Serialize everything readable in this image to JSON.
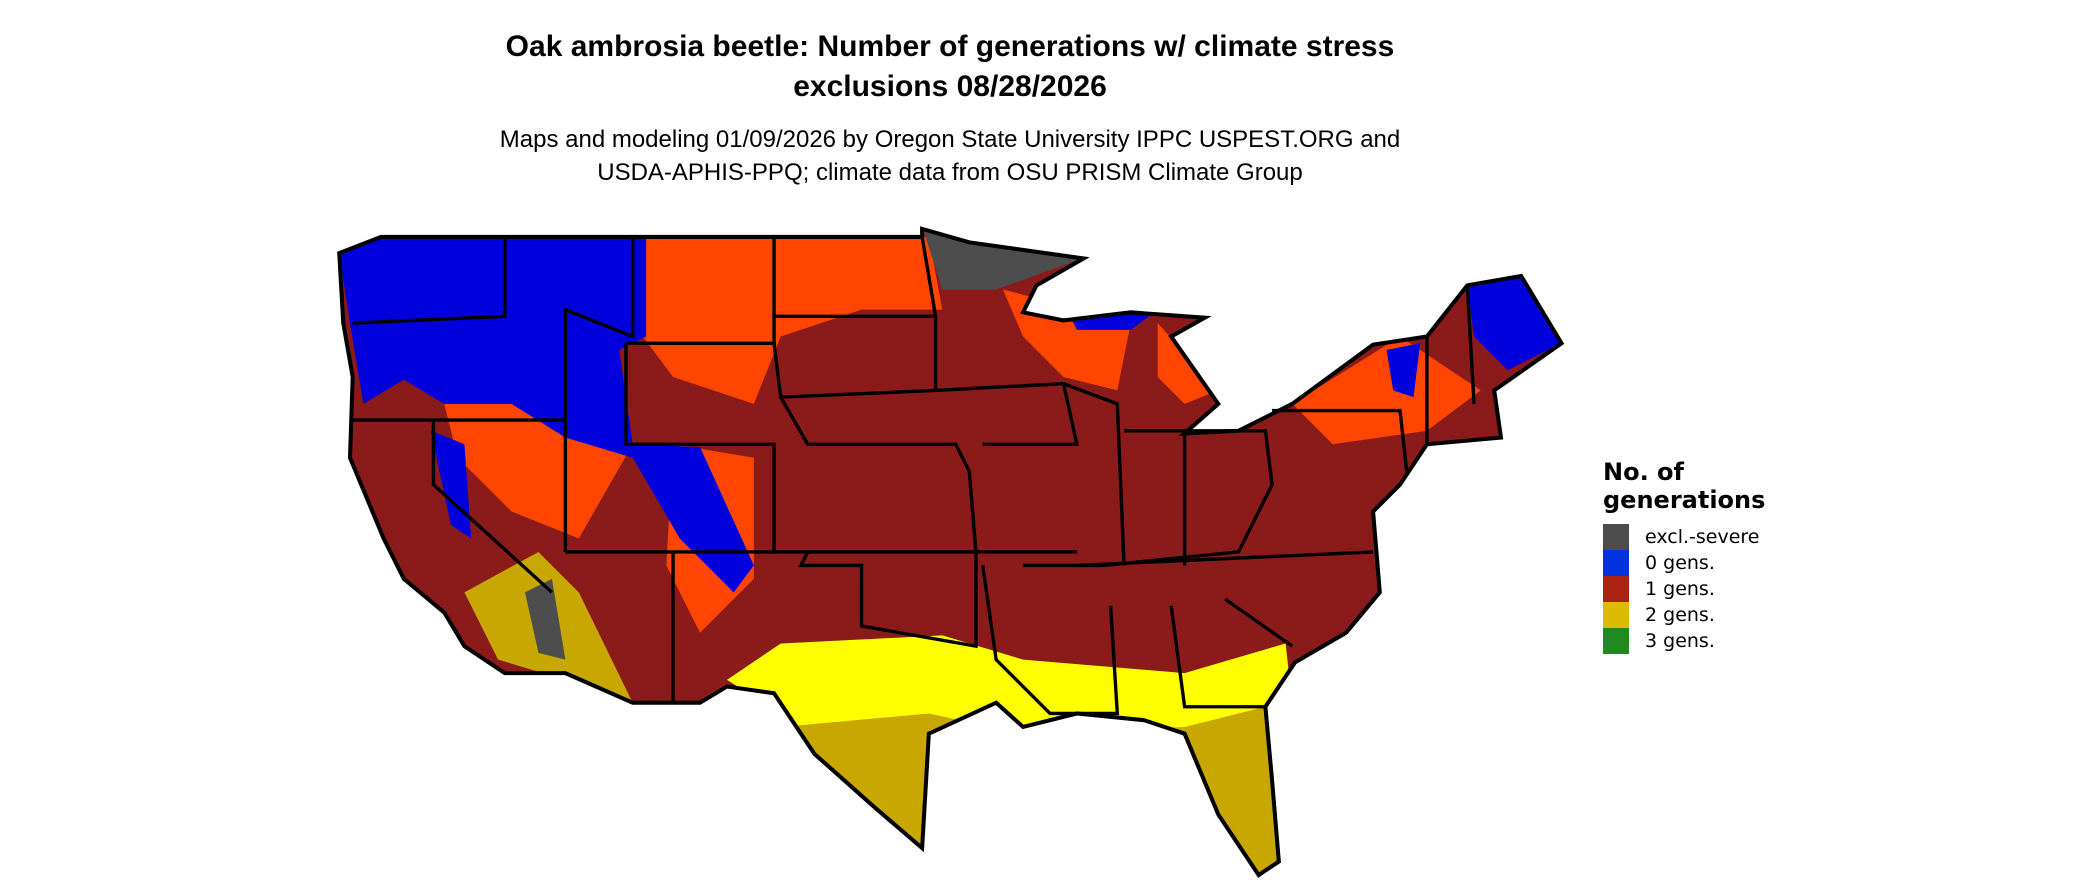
{
  "title_line1": "Oak ambrosia beetle: Number of generations w/ climate stress",
  "title_line2": "exclusions 08/28/2026",
  "subtitle_line1": "Maps and modeling 01/09/2026 by Oregon State University IPPC USPEST.ORG and",
  "subtitle_line2": "USDA-APHIS-PPQ; climate data from OSU PRISM Climate Group",
  "map": {
    "region": "Contiguous United States",
    "colors": {
      "excluded": "#4d4d4d",
      "zero": "#0000dd",
      "one_light": "#ff4500",
      "one": "#8b1a1a",
      "two_light": "#ffff00",
      "two": "#c8a800"
    }
  },
  "legend": {
    "title": "No. of generations",
    "items": [
      {
        "label": "excl.-severe",
        "color": "#4d4d4d"
      },
      {
        "label": "0 gens.",
        "color": "#0033dd"
      },
      {
        "label": "1 gens.",
        "color": "#aa2211"
      },
      {
        "label": "2 gens.",
        "color": "#ddbb00"
      },
      {
        "label": "3 gens.",
        "color": "#228822"
      }
    ]
  }
}
